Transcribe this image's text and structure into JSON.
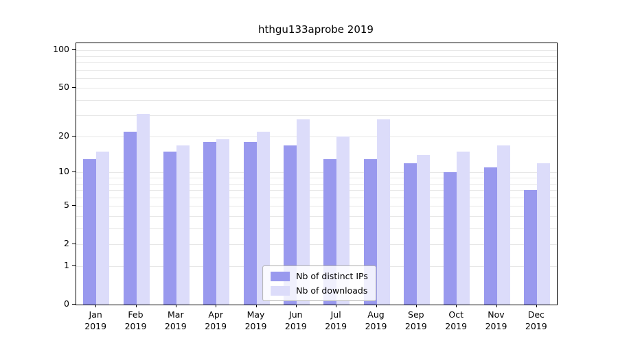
{
  "title": "hthgu133aprobe 2019",
  "chart_data": {
    "type": "bar",
    "title": "hthgu133aprobe 2019",
    "categories": [
      "Jan",
      "Feb",
      "Mar",
      "Apr",
      "May",
      "Jun",
      "Jul",
      "Aug",
      "Sep",
      "Oct",
      "Nov",
      "Dec"
    ],
    "year": "2019",
    "series": [
      {
        "name": "Nb of distinct IPs",
        "color": "#9999ee",
        "values": [
          13,
          22,
          15,
          18,
          18,
          17,
          13,
          13,
          12,
          10,
          11,
          7
        ]
      },
      {
        "name": "Nb of downloads",
        "color": "#dcdcfa",
        "values": [
          15,
          31,
          17,
          19,
          22,
          28,
          20,
          28,
          14,
          15,
          17,
          12
        ]
      }
    ],
    "yticks": [
      0,
      1,
      2,
      5,
      10,
      20,
      50,
      100
    ],
    "gridlines": [
      1,
      2,
      3,
      4,
      5,
      6,
      7,
      8,
      9,
      10,
      20,
      30,
      40,
      50,
      60,
      70,
      80,
      90,
      100
    ],
    "scale": "log1p",
    "xlabel": "",
    "ylabel": "",
    "grid": "on",
    "legend_position": "bottom-center"
  }
}
